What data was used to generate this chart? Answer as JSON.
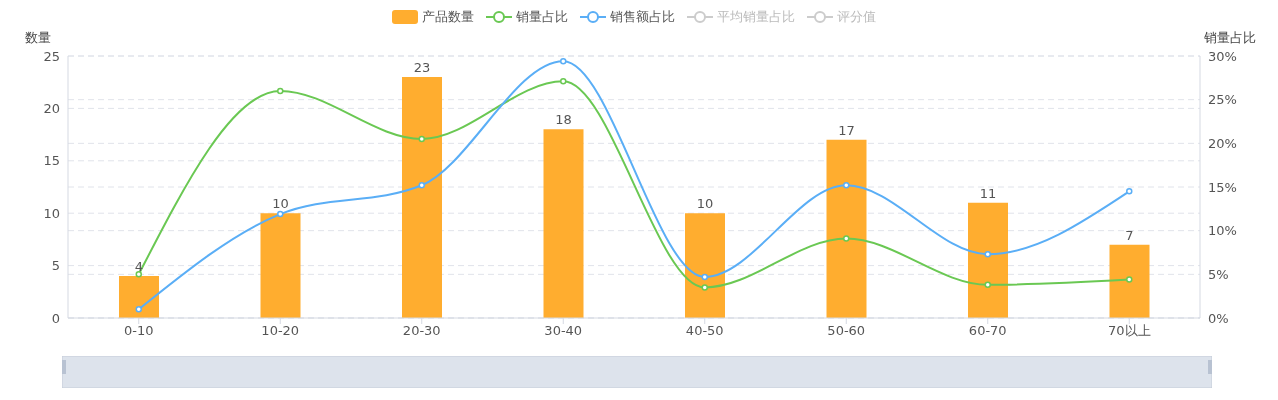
{
  "chart_data": {
    "type": "bar",
    "categories": [
      "0-10",
      "10-20",
      "20-30",
      "30-40",
      "40-50",
      "50-60",
      "60-70",
      "70以上"
    ],
    "ylabel": "数量",
    "y2label": "销量占比",
    "ylim": [
      0,
      25
    ],
    "yticks": [
      0,
      5,
      10,
      15,
      20,
      25
    ],
    "y2lim": [
      0,
      30
    ],
    "y2ticks": [
      {
        "value": 0,
        "label": "0%"
      },
      {
        "value": 5,
        "label": "5%"
      },
      {
        "value": 10,
        "label": "10%"
      },
      {
        "value": 15,
        "label": "15%"
      },
      {
        "value": 20,
        "label": "20%"
      },
      {
        "value": 25,
        "label": "25%"
      },
      {
        "value": 30,
        "label": "30%"
      }
    ],
    "grid": true,
    "legend": "top",
    "marker": "circle",
    "series": [
      {
        "name": "产品数量",
        "color": "#ffad2f",
        "values": [
          4,
          10,
          23,
          18,
          10,
          17,
          11,
          7
        ],
        "value_labels": [
          "4",
          "10",
          "23",
          "18",
          "10",
          "17",
          "11",
          "7"
        ]
      },
      {
        "name": "销量占比",
        "type": "line",
        "axis": "y2",
        "color": "#6ac853",
        "values": [
          5.0,
          26.0,
          20.5,
          27.1,
          3.5,
          9.1,
          3.8,
          4.4
        ]
      },
      {
        "name": "销售额占比",
        "type": "line",
        "axis": "y2",
        "color": "#5aaef6",
        "values": [
          1.0,
          11.9,
          15.2,
          29.4,
          4.7,
          15.2,
          7.3,
          14.5
        ]
      },
      {
        "name": "平均销量占比",
        "type": "line",
        "axis": "y2",
        "color": "#cccccc",
        "values": [
          null,
          null,
          null,
          null,
          null,
          null,
          null,
          null
        ]
      },
      {
        "name": "评分值",
        "type": "line",
        "axis": "y2",
        "color": "#cccccc",
        "values": [
          null,
          null,
          null,
          null,
          null,
          null,
          null,
          null
        ]
      }
    ]
  }
}
